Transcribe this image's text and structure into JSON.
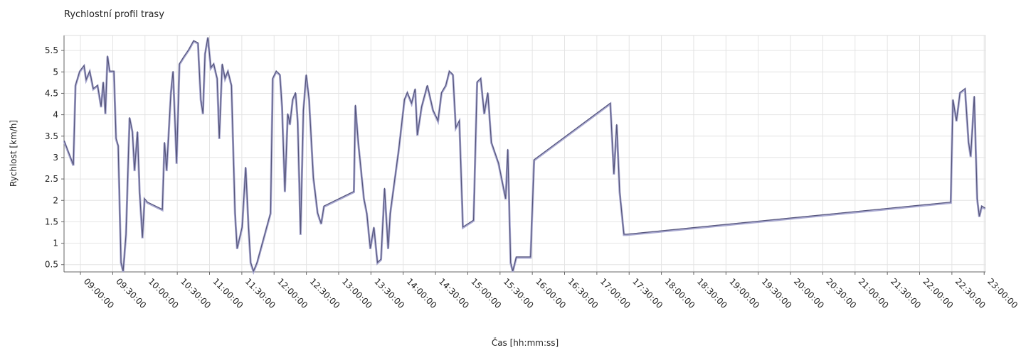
{
  "chart_data": {
    "type": "line",
    "title": "Rychlostní profil trasy",
    "x_label": "Čas  [hh:mm:ss]",
    "y_label": "Rychlost [km/h]",
    "color": "#56567c",
    "grid": true,
    "xlim": [
      "08:44:45",
      "23:01:10"
    ],
    "ylim": [
      0.33,
      5.85
    ],
    "yticks": [
      0.5,
      1,
      1.5,
      2,
      2.5,
      3,
      3.5,
      4,
      4.5,
      5,
      5.5
    ],
    "xticks": [
      "09:00:00",
      "09:30:00",
      "10:00:00",
      "10:30:00",
      "11:00:00",
      "11:30:00",
      "12:00:00",
      "12:30:00",
      "13:00:00",
      "13:30:00",
      "14:00:00",
      "14:30:00",
      "15:00:00",
      "15:30:00",
      "16:00:00",
      "16:30:00",
      "17:00:00",
      "17:30:00",
      "18:00:00",
      "18:30:00",
      "19:00:00",
      "19:30:00",
      "20:00:00",
      "20:30:00",
      "21:00:00",
      "21:30:00",
      "22:00:00",
      "22:30:00",
      "23:00:00"
    ],
    "x": [
      "08:44:46",
      "08:53:23",
      "08:55:22",
      "08:59:20",
      "09:03:19",
      "09:05:18",
      "09:08:36",
      "09:11:55",
      "09:15:53",
      "09:19:12",
      "09:21:11",
      "09:23:10",
      "09:25:09",
      "09:27:09",
      "09:31:07",
      "09:33:06",
      "09:35:05",
      "09:37:44",
      "09:39:43",
      "09:42:22",
      "09:45:41",
      "09:48:20",
      "09:50:19",
      "09:52:58",
      "09:54:57",
      "09:57:36",
      "09:59:35",
      "10:02:14",
      "10:16:08",
      "10:18:07",
      "10:20:06",
      "10:24:04",
      "10:26:04",
      "10:29:22",
      "10:32:01",
      "10:35:59",
      "10:40:37",
      "10:45:15",
      "10:49:14",
      "10:51:53",
      "10:53:52",
      "10:55:51",
      "10:58:30",
      "11:01:09",
      "11:03:48",
      "11:07:06",
      "11:09:05",
      "11:11:44",
      "11:14:23",
      "11:17:02",
      "11:20:21",
      "11:23:39",
      "11:25:38",
      "11:30:16",
      "11:33:35",
      "11:36:14",
      "11:38:13",
      "11:40:52",
      "11:44:11",
      "11:56:45",
      "11:58:44",
      "12:02:03",
      "12:05:22",
      "12:07:21",
      "12:10:00",
      "12:12:39",
      "12:14:38",
      "12:17:17",
      "12:19:56",
      "12:21:55",
      "12:24:34",
      "12:27:13",
      "12:29:52",
      "12:32:31",
      "12:36:28",
      "12:40:27",
      "12:43:45",
      "12:46:24",
      "13:14:12",
      "13:15:32",
      "13:18:11",
      "13:20:10",
      "13:23:29",
      "13:26:07",
      "13:29:26",
      "13:32:45",
      "13:36:03",
      "13:39:22",
      "13:42:40",
      "13:45:59",
      "13:47:58",
      "13:55:55",
      "14:01:13",
      "14:03:51",
      "14:07:50",
      "14:11:08",
      "14:13:08",
      "14:17:06",
      "14:22:24",
      "14:27:41",
      "14:32:19",
      "14:35:38",
      "14:39:36",
      "14:42:55",
      "14:46:14",
      "14:48:53",
      "14:52:11",
      "14:55:30",
      "15:05:25",
      "15:08:44",
      "15:12:02",
      "15:15:21",
      "15:18:40",
      "15:21:58",
      "15:28:36",
      "15:35:13",
      "15:37:12",
      "15:39:51",
      "15:41:50",
      "15:45:09",
      "15:58:23",
      "16:01:42",
      "17:12:32",
      "17:15:51",
      "17:18:30",
      "17:21:09",
      "17:25:07",
      "17:27:46",
      "22:28:58",
      "22:30:57",
      "22:34:16",
      "22:37:34",
      "22:42:12",
      "22:45:31",
      "22:47:30",
      "22:50:49",
      "22:53:28",
      "22:55:27",
      "22:57:46",
      "23:00:55"
    ],
    "values": [
      3.4,
      2.83,
      4.69,
      5.02,
      5.15,
      4.82,
      5.02,
      4.61,
      4.69,
      4.19,
      4.77,
      4.03,
      5.38,
      5.02,
      5.02,
      3.45,
      3.28,
      0.55,
      0.35,
      1.21,
      3.94,
      3.61,
      2.7,
      3.61,
      2.21,
      1.13,
      2.04,
      1.96,
      1.79,
      3.36,
      2.7,
      4.52,
      5.02,
      2.87,
      5.19,
      5.35,
      5.52,
      5.73,
      5.68,
      4.36,
      4.03,
      5.43,
      5.81,
      5.1,
      5.19,
      4.85,
      3.45,
      5.19,
      4.85,
      5.02,
      4.69,
      1.71,
      0.88,
      1.38,
      2.78,
      1.38,
      0.55,
      0.35,
      0.55,
      1.71,
      4.85,
      5.02,
      4.94,
      4.19,
      2.21,
      4.03,
      3.78,
      4.36,
      4.52,
      3.86,
      1.21,
      4.11,
      4.94,
      4.36,
      2.54,
      1.71,
      1.46,
      1.87,
      2.21,
      4.23,
      3.36,
      2.87,
      2.04,
      1.71,
      0.88,
      1.38,
      0.55,
      0.63,
      2.29,
      0.88,
      1.71,
      3.2,
      4.36,
      4.52,
      4.27,
      4.61,
      3.53,
      4.19,
      4.69,
      4.11,
      3.86,
      4.52,
      4.69,
      5.02,
      4.94,
      3.7,
      3.86,
      1.38,
      1.54,
      4.77,
      4.85,
      4.03,
      4.52,
      3.36,
      2.87,
      2.04,
      3.2,
      0.55,
      0.35,
      0.68,
      0.68,
      2.95,
      4.27,
      2.62,
      3.78,
      2.21,
      1.21,
      1.21,
      1.96,
      4.36,
      3.86,
      4.52,
      4.61,
      3.36,
      3.03,
      4.44,
      2.04,
      1.63,
      1.87,
      1.82
    ]
  }
}
